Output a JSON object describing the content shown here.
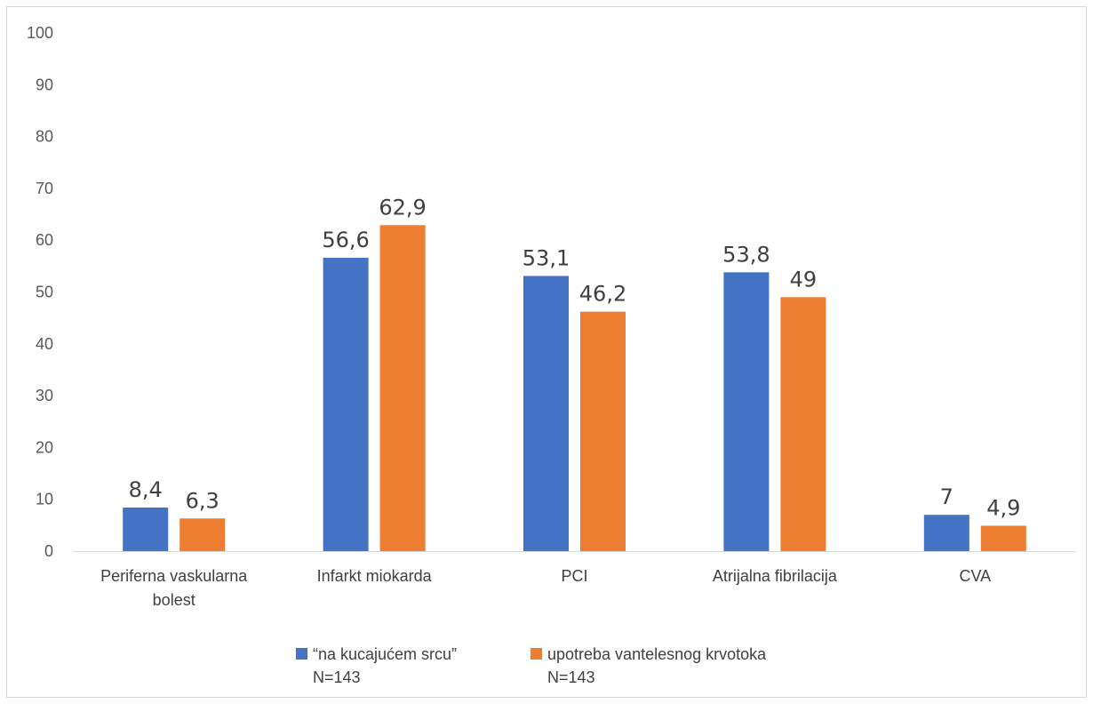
{
  "chart_data": {
    "type": "bar",
    "title": "",
    "xlabel": "",
    "ylabel": "",
    "ylim": [
      0,
      100
    ],
    "yticks": [
      0,
      10,
      20,
      30,
      40,
      50,
      60,
      70,
      80,
      90,
      100
    ],
    "grid": false,
    "legend_position": "bottom",
    "categories": [
      [
        "Periferna vaskularna",
        "bolest"
      ],
      [
        "Infarkt miokarda"
      ],
      [
        "PCI"
      ],
      [
        "Atrijalna fibrilacija"
      ],
      [
        "CVA"
      ]
    ],
    "series": [
      {
        "name": "“na kucajućem srcu”",
        "subtitle": "N=143",
        "color": "#4472c4",
        "values": [
          8.4,
          56.6,
          53.1,
          53.8,
          7
        ],
        "labels": [
          "8,4",
          "56,6",
          "53,1",
          "53,8",
          "7"
        ]
      },
      {
        "name": "upotreba vantelesnog krvotoka",
        "subtitle": "N=143",
        "color": "#ed7d31",
        "values": [
          6.3,
          62.9,
          46.2,
          49,
          4.9
        ],
        "labels": [
          "6,3",
          "62,9",
          "46,2",
          "49",
          "4,9"
        ]
      }
    ]
  }
}
